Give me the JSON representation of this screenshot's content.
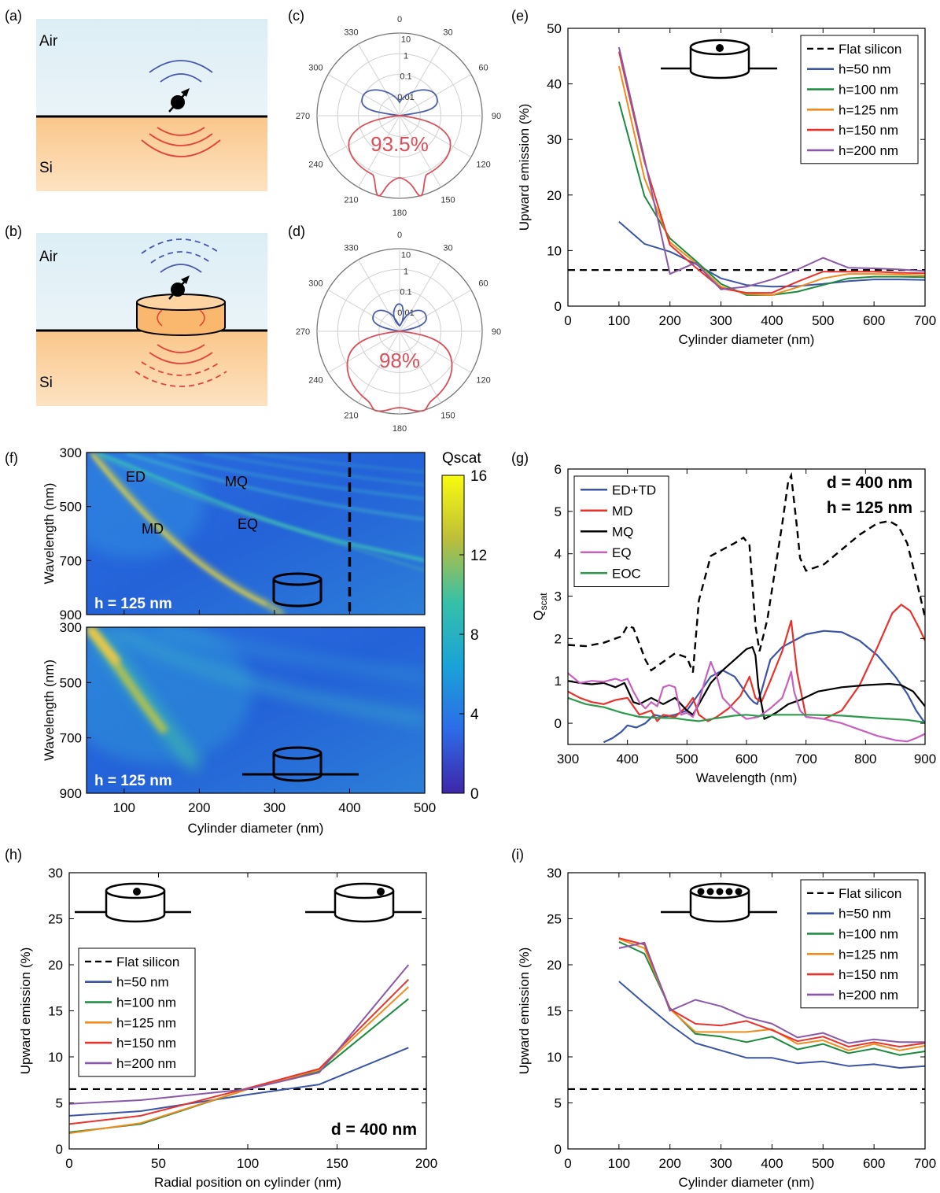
{
  "colors": {
    "blue": "#3B54A8",
    "green": "#1C8A3E",
    "orange": "#F08C1E",
    "red": "#E8322B",
    "purple": "#8A58AA",
    "air_bg": "#DCEEF5",
    "si_bg": "#FBCB8E",
    "polar_blue": "#4B5EAA",
    "polar_red": "#D9505A",
    "magenta": "#C860C0",
    "eoc_green": "#2E9A4C"
  },
  "panels": {
    "a": {
      "letter": "(a)",
      "air": "Air",
      "si": "Si"
    },
    "b": {
      "letter": "(b)",
      "air": "Air",
      "si": "Si"
    },
    "c": {
      "letter": "(c)",
      "percent": "93.5%"
    },
    "d": {
      "letter": "(d)",
      "percent": "98%"
    },
    "e": {
      "letter": "(e)"
    },
    "f": {
      "letter": "(f)",
      "colorbar_title": "Qscat",
      "colorbar_ticks": [
        "0",
        "4",
        "8",
        "12",
        "16"
      ],
      "top_h_label": "h = 125 nm",
      "bottom_h_label": "h = 125 nm",
      "mode_labels": [
        "ED",
        "MQ",
        "MD",
        "EQ"
      ]
    },
    "g": {
      "letter": "(g)",
      "annotation_d": "d = 400 nm",
      "annotation_h": "h = 125 nm"
    },
    "h": {
      "letter": "(h)",
      "annotation": "d = 400 nm"
    },
    "i": {
      "letter": "(i)"
    }
  },
  "polar": {
    "angle_labels": [
      "0",
      "30",
      "60",
      "90",
      "120",
      "150",
      "180",
      "210",
      "240",
      "270",
      "300",
      "330"
    ],
    "radial_labels": [
      "10",
      "1",
      "0.1",
      "0.01"
    ]
  },
  "chart_data": [
    {
      "id": "e",
      "type": "line",
      "xlabel": "Cylinder diameter (nm)",
      "ylabel": "Upward emission (%)",
      "xlim": [
        0,
        700
      ],
      "ylim": [
        0,
        50
      ],
      "xticks": [
        0,
        100,
        200,
        300,
        400,
        500,
        600,
        700
      ],
      "yticks": [
        0,
        10,
        20,
        30,
        40,
        50
      ],
      "legend_position": "top-right",
      "reference": {
        "name": "Flat silicon",
        "y": 6.5,
        "style": "dashed"
      },
      "x": [
        100,
        150,
        200,
        250,
        300,
        350,
        400,
        450,
        500,
        550,
        600,
        650,
        700
      ],
      "series": [
        {
          "name": "h=50 nm",
          "color": "blue",
          "values": [
            15.2,
            11.2,
            9.8,
            7.6,
            5.0,
            3.8,
            3.5,
            3.6,
            4.0,
            4.5,
            4.8,
            4.8,
            4.7
          ]
        },
        {
          "name": "h=100 nm",
          "color": "green",
          "values": [
            36.8,
            19.8,
            12.2,
            8.2,
            4.0,
            2.0,
            2.0,
            2.6,
            3.8,
            5.0,
            5.3,
            5.3,
            5.2
          ]
        },
        {
          "name": "h=125 nm",
          "color": "orange",
          "values": [
            43.2,
            23.0,
            11.5,
            7.8,
            3.5,
            2.2,
            2.0,
            3.4,
            5.0,
            5.8,
            5.8,
            5.7,
            5.5
          ]
        },
        {
          "name": "h=150 nm",
          "color": "red",
          "values": [
            45.8,
            26.0,
            11.0,
            7.0,
            3.2,
            2.4,
            2.4,
            4.4,
            6.2,
            6.2,
            6.2,
            6.0,
            5.9
          ]
        },
        {
          "name": "h=200 nm",
          "color": "purple",
          "values": [
            46.6,
            26.5,
            5.8,
            7.8,
            3.0,
            3.5,
            4.8,
            6.6,
            8.7,
            6.9,
            6.8,
            6.6,
            6.3
          ]
        }
      ]
    },
    {
      "id": "f",
      "type": "heatmap",
      "xlabel": "Cylinder diameter (nm)",
      "ylabel": "Wavelength (nm)",
      "xlim": [
        50,
        500
      ],
      "ylim": [
        300,
        900
      ],
      "xticks": [
        100,
        200,
        300,
        400,
        500
      ],
      "yticks": [
        300,
        500,
        700,
        900
      ],
      "colorbar_range": [
        0,
        16
      ],
      "marker_line_x": 400
    },
    {
      "id": "g",
      "type": "line",
      "xlabel": "Wavelength (nm)",
      "ylabel": "Qscat",
      "xlim": [
        300,
        900
      ],
      "ylim": [
        -0.5,
        6
      ],
      "xticks": [
        300,
        400,
        500,
        600,
        700,
        800,
        900
      ],
      "yticks": [
        0,
        1,
        2,
        3,
        4,
        5,
        6
      ],
      "legend_position": "top-left",
      "total": {
        "style": "dashed",
        "x": [
          300,
          330,
          360,
          390,
          400,
          410,
          430,
          440,
          460,
          480,
          500,
          510,
          520,
          540,
          560,
          580,
          595,
          605,
          615,
          622,
          635,
          660,
          670,
          675,
          685,
          690,
          700,
          730,
          760,
          790,
          820,
          840,
          855,
          870,
          885,
          900
        ],
        "y": [
          1.85,
          1.82,
          1.9,
          2.05,
          2.3,
          2.25,
          1.5,
          1.25,
          1.45,
          1.65,
          1.55,
          1.2,
          2.9,
          3.95,
          4.1,
          4.25,
          4.38,
          4.2,
          2.3,
          1.7,
          2.45,
          4.7,
          5.7,
          5.85,
          4.6,
          3.9,
          3.6,
          3.75,
          4.1,
          4.45,
          4.72,
          4.77,
          4.65,
          4.25,
          3.4,
          2.5
        ]
      },
      "series": [
        {
          "name": "ED+TD",
          "color": "blue",
          "x": [
            360,
            375,
            390,
            400,
            415,
            430,
            445,
            460,
            480,
            500,
            520,
            540,
            560,
            580,
            595,
            605,
            612,
            618,
            625,
            640,
            660,
            680,
            700,
            730,
            760,
            790,
            820,
            850,
            870,
            885,
            900
          ],
          "y": [
            -0.45,
            -0.35,
            -0.2,
            -0.05,
            -0.1,
            0.0,
            0.2,
            0.15,
            0.2,
            0.3,
            0.7,
            1.1,
            1.25,
            1.1,
            0.8,
            0.6,
            0.5,
            0.45,
            0.75,
            1.5,
            1.8,
            1.95,
            2.1,
            2.18,
            2.15,
            1.95,
            1.6,
            1.1,
            0.7,
            0.3,
            0.0
          ]
        },
        {
          "name": "MD",
          "color": "red",
          "x": [
            300,
            320,
            340,
            360,
            380,
            400,
            420,
            440,
            450,
            460,
            480,
            500,
            510,
            520,
            535,
            550,
            570,
            590,
            605,
            615,
            625,
            640,
            660,
            675,
            685,
            700,
            730,
            760,
            790,
            820,
            845,
            860,
            875,
            890,
            900
          ],
          "y": [
            0.75,
            0.6,
            0.5,
            0.45,
            0.55,
            0.6,
            0.2,
            0.3,
            0.05,
            0.2,
            0.15,
            0.4,
            0.6,
            0.2,
            0.05,
            0.15,
            0.35,
            0.65,
            1.1,
            0.6,
            0.5,
            1.0,
            1.7,
            2.42,
            1.2,
            0.15,
            0.1,
            0.3,
            0.9,
            1.8,
            2.6,
            2.8,
            2.65,
            2.25,
            1.95
          ]
        },
        {
          "name": "MQ",
          "color": "black",
          "x": [
            300,
            320,
            340,
            360,
            380,
            395,
            410,
            420,
            440,
            460,
            480,
            500,
            510,
            520,
            540,
            560,
            580,
            600,
            610,
            615,
            620,
            630,
            650,
            670,
            690,
            720,
            760,
            800,
            840,
            860,
            880,
            900
          ],
          "y": [
            1.0,
            0.95,
            0.92,
            0.95,
            0.85,
            0.95,
            0.5,
            0.45,
            0.6,
            0.45,
            0.6,
            0.3,
            0.2,
            0.45,
            0.95,
            1.25,
            1.5,
            1.75,
            1.8,
            1.6,
            0.85,
            0.1,
            0.25,
            0.45,
            0.55,
            0.75,
            0.85,
            0.9,
            0.93,
            0.9,
            0.75,
            0.4
          ]
        },
        {
          "name": "EQ",
          "color": "magenta",
          "x": [
            300,
            320,
            340,
            360,
            380,
            390,
            400,
            410,
            420,
            430,
            440,
            450,
            460,
            470,
            480,
            490,
            500,
            510,
            520,
            530,
            540,
            550,
            560,
            580,
            600,
            620,
            640,
            660,
            670,
            675,
            680,
            690,
            700,
            730,
            760,
            790,
            820,
            850,
            870,
            885,
            900
          ],
          "y": [
            1.18,
            0.95,
            1.0,
            0.98,
            1.05,
            1.0,
            1.05,
            0.75,
            0.5,
            0.35,
            0.5,
            0.4,
            0.85,
            0.9,
            0.85,
            0.2,
            0.25,
            0.15,
            0.5,
            1.0,
            1.45,
            1.1,
            0.6,
            0.3,
            0.1,
            0.15,
            0.35,
            0.6,
            1.0,
            1.22,
            0.75,
            0.3,
            0.15,
            0.1,
            0.0,
            -0.15,
            -0.3,
            -0.4,
            -0.43,
            -0.35,
            -0.25
          ]
        },
        {
          "name": "EOC",
          "color": "eoc_green",
          "x": [
            300,
            330,
            360,
            390,
            420,
            450,
            480,
            500,
            520,
            550,
            580,
            600,
            620,
            650,
            700,
            760,
            820,
            870,
            900
          ],
          "y": [
            0.6,
            0.45,
            0.38,
            0.25,
            0.15,
            0.13,
            0.12,
            0.08,
            0.05,
            0.12,
            0.18,
            0.2,
            0.17,
            0.2,
            0.2,
            0.18,
            0.12,
            0.08,
            0.02
          ]
        }
      ]
    },
    {
      "id": "h",
      "type": "line",
      "xlabel": "Radial position on cylinder (nm)",
      "ylabel": "Upward emission (%)",
      "xlim": [
        0,
        200
      ],
      "ylim": [
        0,
        30
      ],
      "xticks": [
        0,
        50,
        100,
        150,
        200
      ],
      "yticks": [
        0,
        5,
        10,
        15,
        20,
        25,
        30
      ],
      "legend_position": "middle-left",
      "reference": {
        "name": "Flat silicon",
        "y": 6.5,
        "style": "dashed"
      },
      "x": [
        0,
        40,
        100,
        140,
        190
      ],
      "series": [
        {
          "name": "h=50 nm",
          "color": "blue",
          "values": [
            3.6,
            4.1,
            5.9,
            7.0,
            11.0
          ]
        },
        {
          "name": "h=100 nm",
          "color": "green",
          "values": [
            1.8,
            2.7,
            6.5,
            8.4,
            16.3
          ]
        },
        {
          "name": "h=125 nm",
          "color": "orange",
          "values": [
            1.7,
            2.8,
            6.5,
            8.6,
            17.6
          ]
        },
        {
          "name": "h=150 nm",
          "color": "red",
          "values": [
            2.7,
            3.6,
            6.6,
            8.7,
            18.4
          ]
        },
        {
          "name": "h=200 nm",
          "color": "purple",
          "values": [
            4.9,
            5.3,
            6.5,
            8.3,
            20.0
          ]
        }
      ]
    },
    {
      "id": "i",
      "type": "line",
      "xlabel": "Cylinder diameter (nm)",
      "ylabel": "Upward emission (%)",
      "xlim": [
        0,
        700
      ],
      "ylim": [
        0,
        30
      ],
      "xticks": [
        0,
        100,
        200,
        300,
        400,
        500,
        600,
        700
      ],
      "yticks": [
        0,
        5,
        10,
        15,
        20,
        25,
        30
      ],
      "legend_position": "top-right",
      "reference": {
        "name": "Flat silicon",
        "y": 6.5,
        "style": "dashed"
      },
      "x": [
        100,
        150,
        200,
        250,
        300,
        350,
        400,
        450,
        500,
        550,
        600,
        650,
        700
      ],
      "series": [
        {
          "name": "h=50 nm",
          "color": "blue",
          "values": [
            18.2,
            15.8,
            13.5,
            11.5,
            10.7,
            9.9,
            9.9,
            9.3,
            9.5,
            9.0,
            9.2,
            8.8,
            9.0
          ]
        },
        {
          "name": "h=100 nm",
          "color": "green",
          "values": [
            22.5,
            21.2,
            15.3,
            12.5,
            12.2,
            11.6,
            12.2,
            10.8,
            11.4,
            10.4,
            10.9,
            10.2,
            10.6
          ]
        },
        {
          "name": "h=125 nm",
          "color": "orange",
          "values": [
            22.8,
            21.8,
            15.2,
            12.7,
            12.7,
            12.7,
            13.0,
            11.4,
            11.8,
            10.7,
            11.4,
            10.7,
            11.2
          ]
        },
        {
          "name": "h=150 nm",
          "color": "red",
          "values": [
            22.9,
            22.2,
            15.2,
            13.6,
            13.4,
            13.9,
            12.9,
            11.7,
            12.2,
            11.1,
            11.6,
            11.1,
            11.5
          ]
        },
        {
          "name": "h=200 nm",
          "color": "purple",
          "values": [
            21.8,
            22.4,
            15.0,
            16.2,
            15.5,
            14.3,
            13.6,
            12.1,
            12.6,
            11.5,
            11.9,
            11.6,
            11.6
          ]
        }
      ]
    }
  ]
}
